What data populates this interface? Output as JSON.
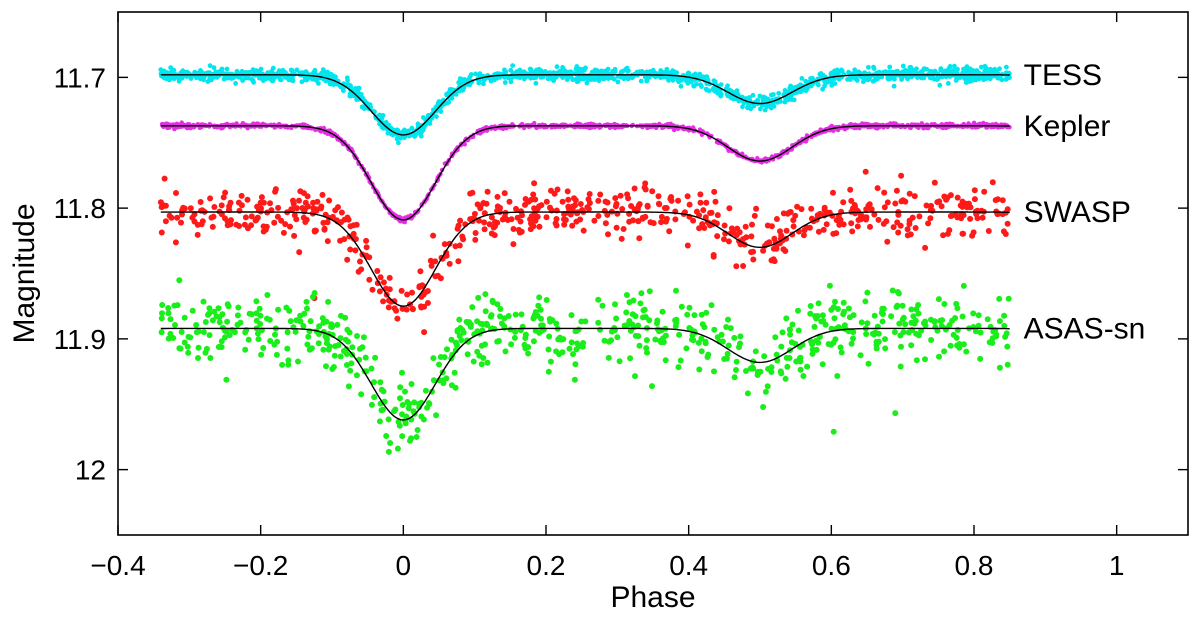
{
  "chart_data": {
    "type": "scatter",
    "title": "",
    "xlabel": "Phase",
    "ylabel": "Magnitude",
    "xlim": [
      -0.4,
      1.1
    ],
    "ylim": [
      11.65,
      12.05
    ],
    "y_inverted": true,
    "grid": false,
    "legend": "inline labels at right end of each series",
    "x_ticks": [
      -0.4,
      -0.2,
      0,
      0.2,
      0.4,
      0.6,
      0.8,
      1
    ],
    "x_tick_labels": [
      "−0.4",
      "−0.2",
      "0",
      "0.2",
      "0.4",
      "0.6",
      "0.8",
      "1"
    ],
    "y_ticks": [
      11.7,
      11.8,
      11.9,
      12
    ],
    "y_tick_labels": [
      "11.7",
      "11.8",
      "11.9",
      "12"
    ],
    "phase_range": [
      -0.34,
      0.85
    ],
    "series": [
      {
        "name": "TESS",
        "color": "#00e5ee",
        "baseline": 11.698,
        "primary_depth": 0.046,
        "secondary_depth": 0.022,
        "primary_width": 0.045,
        "secondary_width": 0.045,
        "scatter": 0.0025,
        "n_points": 1500,
        "point_radius": 2.4
      },
      {
        "name": "Kepler",
        "color": "#e52ee5",
        "baseline": 11.737,
        "primary_depth": 0.072,
        "secondary_depth": 0.027,
        "primary_width": 0.045,
        "secondary_width": 0.045,
        "scatter": 0.0008,
        "n_points": 1200,
        "point_radius": 2.2
      },
      {
        "name": "SWASP",
        "color": "#ff1a1a",
        "baseline": 11.803,
        "primary_depth": 0.072,
        "secondary_depth": 0.027,
        "primary_width": 0.045,
        "secondary_width": 0.045,
        "scatter": 0.01,
        "n_points": 650,
        "point_radius": 3
      },
      {
        "name": "ASAS-sn",
        "color": "#1aee1a",
        "baseline": 11.892,
        "primary_depth": 0.07,
        "secondary_depth": 0.026,
        "primary_width": 0.045,
        "secondary_width": 0.045,
        "scatter": 0.013,
        "n_points": 700,
        "point_radius": 3
      }
    ]
  }
}
